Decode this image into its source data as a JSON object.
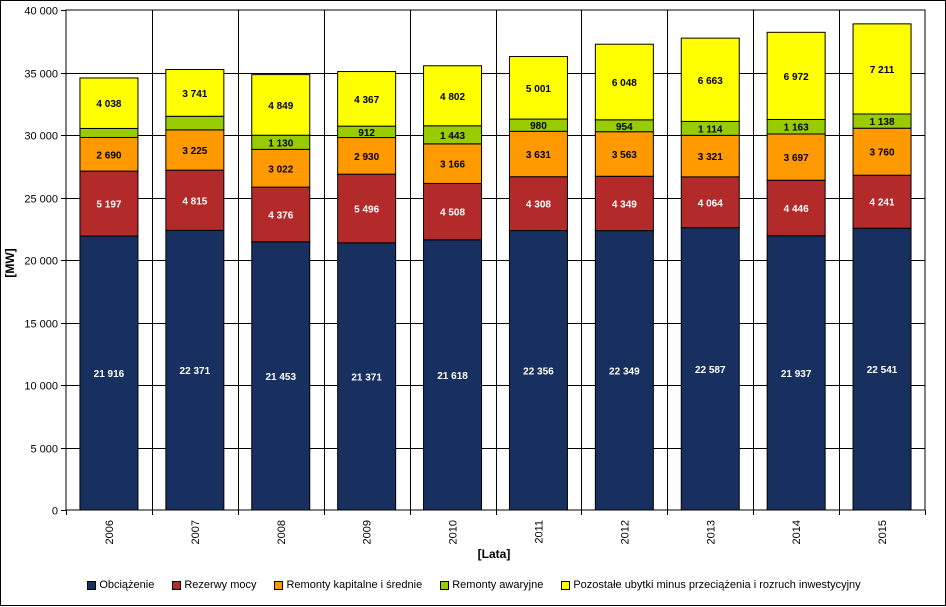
{
  "chart_data": {
    "type": "bar",
    "stacked": true,
    "categories": [
      "2006",
      "2007",
      "2008",
      "2009",
      "2010",
      "2011",
      "2012",
      "2013",
      "2014",
      "2015"
    ],
    "series": [
      {
        "name": "Obciążenie",
        "color": "#17305F",
        "label_color": "#FFFFFF",
        "values": [
          21916,
          22371,
          21453,
          21371,
          21618,
          22356,
          22349,
          22587,
          21937,
          22541
        ],
        "labels": [
          "21 916",
          "22 371",
          "21 453",
          "21 371",
          "21 618",
          "22 356",
          "22 349",
          "22 587",
          "21 937",
          "22 541"
        ]
      },
      {
        "name": "Rezerwy mocy",
        "color": "#B22A2A",
        "label_color": "#FFFFFF",
        "values": [
          5197,
          4815,
          4376,
          5496,
          4508,
          4308,
          4349,
          4064,
          4446,
          4241
        ],
        "labels": [
          "5 197",
          "4 815",
          "4 376",
          "5 496",
          "4 508",
          "4 308",
          "4 349",
          "4 064",
          "4 446",
          "4 241"
        ]
      },
      {
        "name": "Remonty kapitalne i średnie",
        "color": "#FF9900",
        "label_color": "#000000",
        "values": [
          2690,
          3225,
          3022,
          2930,
          3166,
          3631,
          3563,
          3321,
          3697,
          3760
        ],
        "labels": [
          "2 690",
          "3 225",
          "3 022",
          "2 930",
          "3 166",
          "3 631",
          "3 563",
          "3 321",
          "3 697",
          "3 760"
        ]
      },
      {
        "name": "Remonty awaryjne",
        "color": "#99CC00",
        "label_color": "#000000",
        "values": [
          722,
          1088,
          1130,
          912,
          1443,
          980,
          954,
          1114,
          1163,
          1138
        ],
        "labels": [
          "",
          "",
          "1 130",
          "912",
          "1 443",
          "980",
          "954",
          "1 114",
          "1 163",
          "1 138"
        ]
      },
      {
        "name": "Pozostałe ubytki minus przeciążenia i rozruch inwestycyjny",
        "color": "#FFFF00",
        "label_color": "#000000",
        "values": [
          4038,
          3741,
          4849,
          4367,
          4802,
          5001,
          6048,
          6663,
          6972,
          7211
        ],
        "labels": [
          "4 038",
          "3 741",
          "4 849",
          "4 367",
          "4 802",
          "5 001",
          "6 048",
          "6 663",
          "6 972",
          "7 211"
        ]
      }
    ],
    "xlabel": "[Lata]",
    "ylabel": "[MW]",
    "ylim": [
      0,
      40000
    ],
    "yticks": [
      0,
      5000,
      10000,
      15000,
      20000,
      25000,
      30000,
      35000,
      40000
    ],
    "ytick_labels": [
      "0",
      "5 000",
      "10 000",
      "15 000",
      "20 000",
      "25 000",
      "30 000",
      "35 000",
      "40 000"
    ],
    "grid": true,
    "legend_position": "bottom"
  }
}
